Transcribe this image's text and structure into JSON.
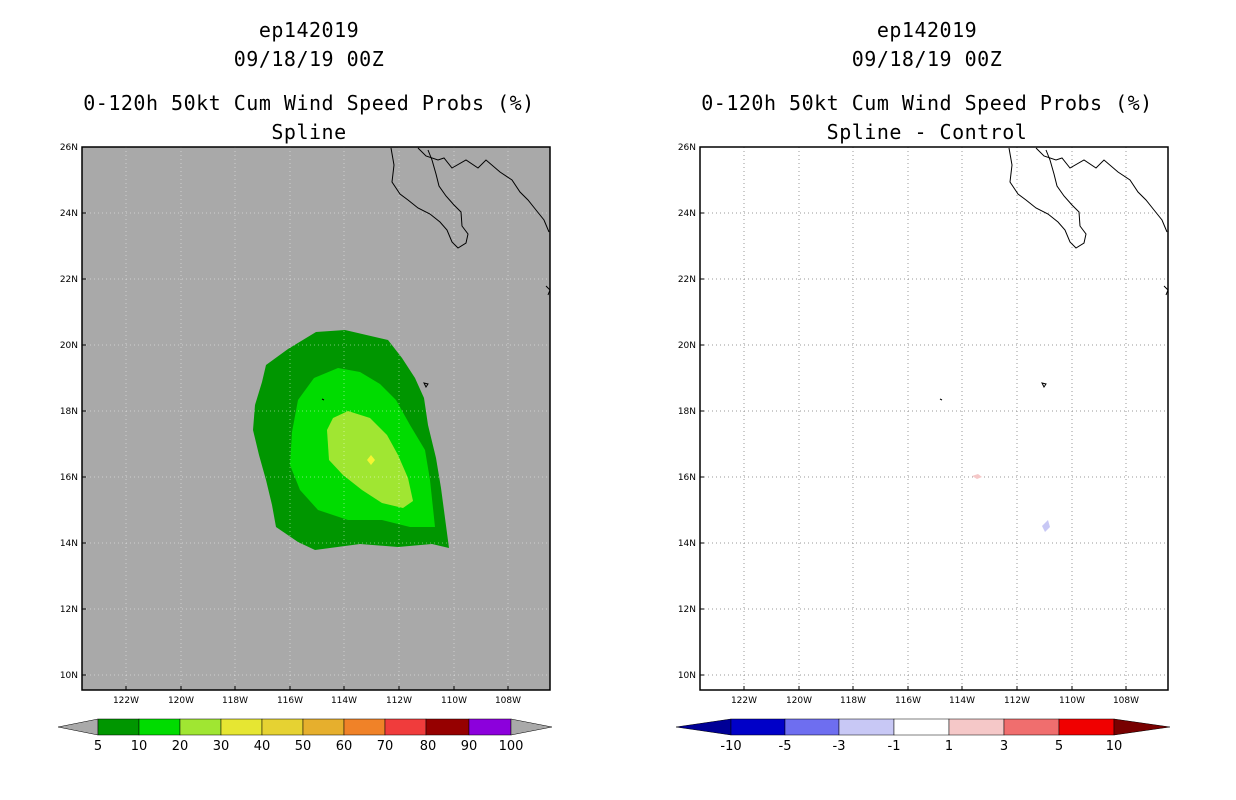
{
  "left": {
    "title_line1": "ep142019",
    "title_line2": "09/18/19 00Z",
    "title_line3": "0-120h 50kt Cum Wind Speed Probs (%)",
    "title_line4": "Spline",
    "lat_labels": [
      "26N",
      "24N",
      "22N",
      "20N",
      "18N",
      "16N",
      "14N",
      "12N",
      "10N"
    ],
    "lon_labels": [
      "122W",
      "120W",
      "118W",
      "116W",
      "114W",
      "112W",
      "110W",
      "108W"
    ],
    "colorbar_labels": [
      "5",
      "10",
      "20",
      "30",
      "40",
      "50",
      "60",
      "70",
      "80",
      "90",
      "100"
    ],
    "colorbar_colors": [
      "#009600",
      "#00dc00",
      "#a0e632",
      "#e6e632",
      "#e6d232",
      "#e6af2d",
      "#f08228",
      "#f03c3c",
      "#960000",
      "#8c00dc"
    ],
    "background_color": "#a9a9a9"
  },
  "right": {
    "title_line1": "ep142019",
    "title_line2": "09/18/19 00Z",
    "title_line3": "0-120h 50kt Cum Wind Speed Probs (%)",
    "title_line4": "Spline - Control",
    "lat_labels": [
      "26N",
      "24N",
      "22N",
      "20N",
      "18N",
      "16N",
      "14N",
      "12N",
      "10N"
    ],
    "lon_labels": [
      "122W",
      "120W",
      "118W",
      "116W",
      "114W",
      "112W",
      "110W",
      "108W"
    ],
    "colorbar_labels": [
      "-10",
      "-5",
      "-3",
      "-1",
      "1",
      "3",
      "5",
      "10"
    ],
    "colorbar_colors": [
      "#0000c8",
      "#6e6ef0",
      "#c8c8f5",
      "#ffffff",
      "#f5c8c8",
      "#f06e6e",
      "#f00000"
    ],
    "colorbar_end_colors": [
      "#000096",
      "#780000"
    ]
  }
}
